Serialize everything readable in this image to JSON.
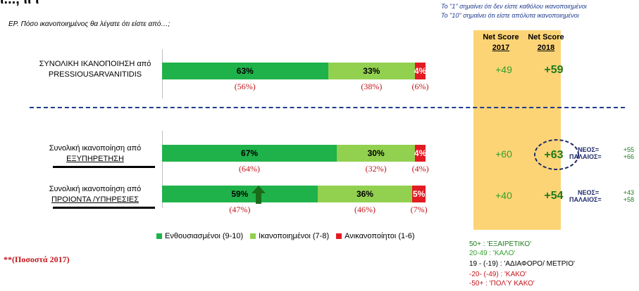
{
  "page": {
    "title_fragment": "ι..., ιι ι",
    "question": "ΕΡ. Πόσο ικανοποιημένος θα λέγατε ότι είστε από…;",
    "scale_note_1": "Το \"1\" σημαίνει ότι δεν είστε καθόλου ικανοποιημένοι",
    "scale_note_2": "Το \"10\" σημαίνει ότι είστε απόλυτα ικανοποιημένοι",
    "footnote": "**(Ποσοστά 2017)"
  },
  "net_score": {
    "header_label": "Net Score",
    "year_2017": "2017",
    "year_2018": "2018"
  },
  "colors": {
    "enthusiastic": "#1fb24a",
    "satisfied": "#92d050",
    "dissatisfied": "#e31b23",
    "panel": "#fcd476",
    "previous_text": "#c0151b",
    "dashed_line": "#1f3b8f"
  },
  "chart_data": {
    "type": "bar",
    "orientation": "horizontal",
    "stacked": true,
    "categories": [
      "ΣΥΝΟΛΙΚΗ ΙΚΑΝΟΠΟΙΗΣΗ από PRESSIOUSARVANITIDIS",
      "Συνολική ικανοποίηση από ΕΞΥΠΗΡΕΤΗΣΗ",
      "Συνολική ικανοποίηση από ΠΡΟΙΟΝΤΑ /ΥΠΗΡΕΣΙΕΣ"
    ],
    "category_lines": [
      [
        "ΣΥΝΟΛΙΚΗ ΙΚΑΝΟΠΟΙΗΣΗ από",
        "PRESSIOUSARVANITIDIS"
      ],
      [
        "Συνολική ικανοποίηση από",
        "ΕΞΥΠΗΡΕΤΗΣΗ"
      ],
      [
        "Συνολική ικανοποίηση από",
        "ΠΡΟΙΟΝΤΑ /ΥΠΗΡΕΣΙΕΣ"
      ]
    ],
    "series": [
      {
        "name": "Ενθουσιασμένοι (9-10)",
        "values": [
          63,
          67,
          59
        ],
        "labels": [
          "63%",
          "67%",
          "59%"
        ],
        "previous": [
          "(56%)",
          "(64%)",
          "(47%)"
        ]
      },
      {
        "name": "Ικανοποιημένοι (7-8)",
        "values": [
          33,
          30,
          36
        ],
        "labels": [
          "33%",
          "30%",
          "36%"
        ],
        "previous": [
          "(38%)",
          "(32%)",
          "(46%)"
        ]
      },
      {
        "name": "Ανικανοποίητοι (1-6)",
        "values": [
          4,
          4,
          5
        ],
        "labels": [
          "4%",
          "4%",
          "5%"
        ],
        "previous": [
          "(6%)",
          "(4%)",
          "(7%)"
        ]
      }
    ],
    "net_score_2017": [
      "+49",
      "+60",
      "+40"
    ],
    "net_score_2018": [
      "+59",
      "+63",
      "+54"
    ],
    "up_arrow_on": "Ενθουσιασμένοι (9-10) / ΠΡΟΙΟΝΤΑ /ΥΠΗΡΕΣΙΕΣ",
    "legend_position": "bottom"
  },
  "splits": [
    {
      "new_label": "ΝΕΟΣ=",
      "new_value": "+55",
      "old_label": "ΠΑΛΑΙΟΣ=",
      "old_value": "+66"
    },
    {
      "new_label": "ΝΕΟΣ=",
      "new_value": "+43",
      "old_label": "ΠΑΛΑΙΟΣ=",
      "old_value": "+58"
    }
  ],
  "score_key": [
    {
      "text": "50+ :  'ΕΞΑΙΡΕΤΙΚΟ'",
      "color": "#1d7a1d"
    },
    {
      "text": "20-49 :  'ΚΑΛΟ'",
      "color": "#33a02c"
    },
    {
      "text": "19 - (-19) :  'ΑΔΙΑΦΟΡΟ/ ΜΕΤΡΙΟ'",
      "color": "#000000"
    },
    {
      "text": "-20- (-49) :  'ΚΑΚΟ'",
      "color": "#c0151b"
    },
    {
      "text": "-50+ :  'ΠΟΛΎ ΚΑΚΟ'",
      "color": "#c0151b"
    }
  ]
}
